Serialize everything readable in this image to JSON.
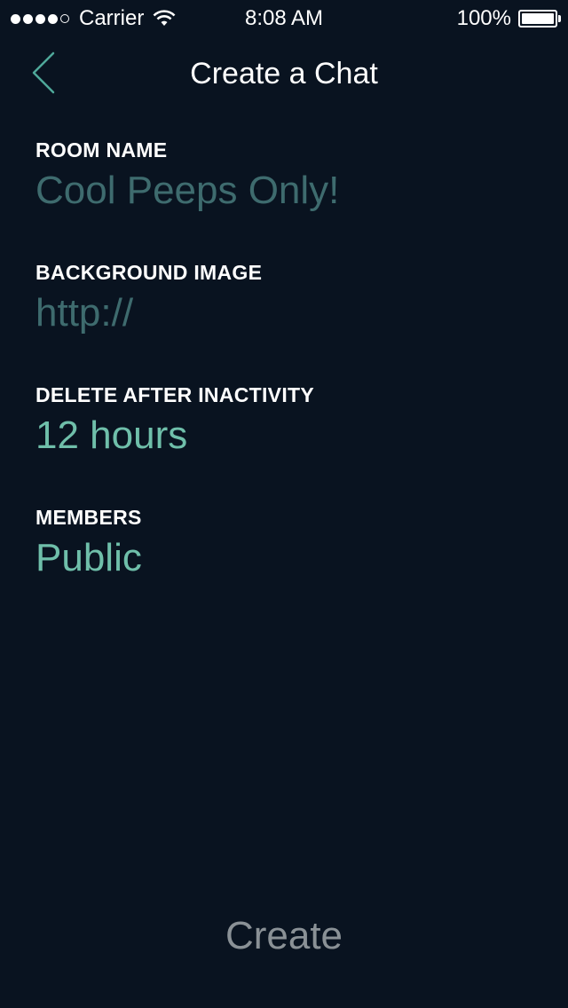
{
  "status_bar": {
    "carrier": "Carrier",
    "time": "8:08 AM",
    "battery": "100%",
    "signal_bars_filled": 4,
    "signal_bars_total": 5
  },
  "nav": {
    "title": "Create a Chat",
    "back_icon": "chevron-left-icon"
  },
  "form": {
    "room_name": {
      "label": "ROOM NAME",
      "value": "Cool Peeps Only!"
    },
    "background_image": {
      "label": "BACKGROUND IMAGE",
      "placeholder": "http://"
    },
    "delete_after": {
      "label": "DELETE AFTER INACTIVITY",
      "value": "12 hours"
    },
    "members": {
      "label": "MEMBERS",
      "value": "Public"
    }
  },
  "actions": {
    "create_label": "Create"
  },
  "colors": {
    "background": "#091320",
    "accent": "#6fbfaa",
    "dim_value": "#3e6b6e",
    "create_text": "#8a9196",
    "back_chevron": "#4fa89a"
  }
}
